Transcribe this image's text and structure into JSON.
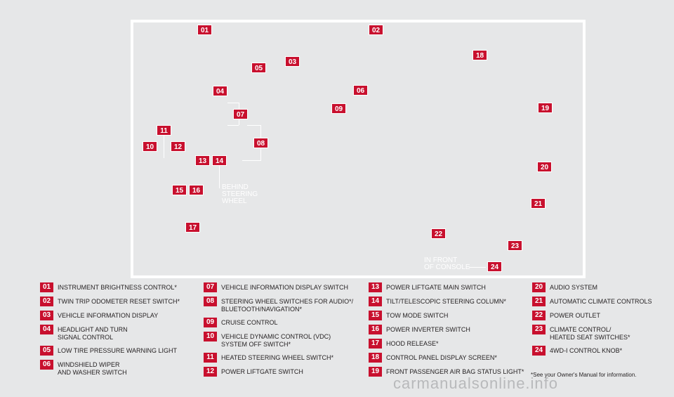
{
  "diagram": {
    "callouts": {
      "behind_steering_wheel": "BEHIND\nSTEERING\nWHEEL",
      "in_front_of_console": "IN FRONT\nOF CONSOLE"
    },
    "markers": [
      "01",
      "02",
      "03",
      "04",
      "05",
      "06",
      "07",
      "08",
      "09",
      "10",
      "11",
      "12",
      "13",
      "14",
      "15",
      "16",
      "17",
      "18",
      "19",
      "20",
      "21",
      "22",
      "23",
      "24"
    ]
  },
  "legend": {
    "col1": [
      {
        "num": "01",
        "label": "INSTRUMENT BRIGHTNESS CONTROL*"
      },
      {
        "num": "02",
        "label": "TWIN TRIP ODOMETER RESET SWITCH*"
      },
      {
        "num": "03",
        "label": "VEHICLE INFORMATION DISPLAY"
      },
      {
        "num": "04",
        "label": "HEADLIGHT AND TURN\nSIGNAL CONTROL"
      },
      {
        "num": "05",
        "label": "LOW TIRE PRESSURE WARNING LIGHT"
      },
      {
        "num": "06",
        "label": "WINDSHIELD WIPER\nAND WASHER SWITCH"
      }
    ],
    "col2": [
      {
        "num": "07",
        "label": "VEHICLE INFORMATION DISPLAY SWITCH"
      },
      {
        "num": "08",
        "label": "STEERING WHEEL SWITCHES FOR AUDIO*/\nBLUETOOTH/NAVIGATION*"
      },
      {
        "num": "09",
        "label": "CRUISE CONTROL"
      },
      {
        "num": "10",
        "label": "VEHICLE DYNAMIC CONTROL (VDC)\nSYSTEM OFF SWITCH*"
      },
      {
        "num": "11",
        "label": "HEATED STEERING WHEEL SWITCH*"
      },
      {
        "num": "12",
        "label": "POWER LIFTGATE SWITCH"
      }
    ],
    "col3": [
      {
        "num": "13",
        "label": "POWER LIFTGATE MAIN SWITCH"
      },
      {
        "num": "14",
        "label": "TILT/TELESCOPIC STEERING COLUMN*"
      },
      {
        "num": "15",
        "label": "TOW MODE SWITCH"
      },
      {
        "num": "16",
        "label": "POWER INVERTER SWITCH"
      },
      {
        "num": "17",
        "label": "HOOD RELEASE*"
      },
      {
        "num": "18",
        "label": "CONTROL PANEL DISPLAY SCREEN*"
      },
      {
        "num": "19",
        "label": "FRONT PASSENGER AIR BAG STATUS LIGHT*"
      }
    ],
    "col4": [
      {
        "num": "20",
        "label": "AUDIO SYSTEM"
      },
      {
        "num": "21",
        "label": "AUTOMATIC CLIMATE CONTROLS"
      },
      {
        "num": "22",
        "label": "POWER OUTLET"
      },
      {
        "num": "23",
        "label": "CLIMATE CONTROL/\nHEATED SEAT SWITCHES*"
      },
      {
        "num": "24",
        "label": "4WD-i CONTROL KNOB*"
      }
    ]
  },
  "footnote": "*See your Owner's Manual for information.",
  "watermark": "carmanualsonline.info",
  "colors": {
    "accent": "#c8102e",
    "background": "#e6e7e8",
    "frame": "#ffffff",
    "text": "#231f20"
  }
}
